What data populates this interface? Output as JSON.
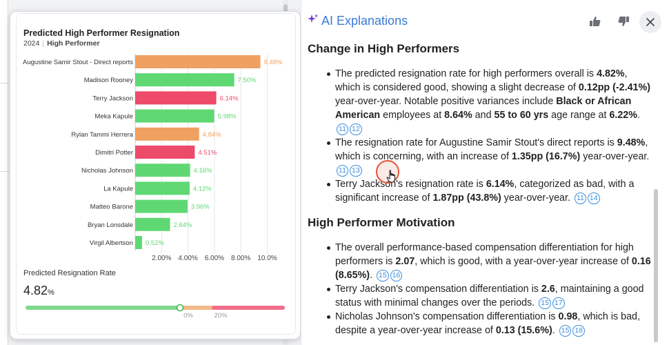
{
  "panel": {
    "title": "AI Explanations",
    "sections": [
      {
        "heading": "Change in High Performers",
        "bullets": [
          [
            {
              "t": "The predicted resignation rate for high performers overall is "
            },
            {
              "t": "4.82%",
              "b": true
            },
            {
              "t": ", which is considered good, showing a slight decrease of "
            },
            {
              "t": "0.12pp (-2.41%)",
              "b": true
            },
            {
              "t": " year-over-year. Notable positive variances include "
            },
            {
              "t": "Black or African American",
              "b": true
            },
            {
              "t": " employees at "
            },
            {
              "t": "8.64%",
              "b": true
            },
            {
              "t": " and "
            },
            {
              "t": "55 to 60 yrs",
              "b": true
            },
            {
              "t": " age range at "
            },
            {
              "t": "6.22%",
              "b": true
            },
            {
              "t": ". "
            },
            {
              "ref": "11"
            },
            {
              "ref": "12"
            }
          ],
          [
            {
              "t": "The resignation rate for Augustine Samir Stout's direct reports is "
            },
            {
              "t": "9.48%",
              "b": true
            },
            {
              "t": ", which is concerning, with an increase of "
            },
            {
              "t": "1.35pp (16.7%)",
              "b": true
            },
            {
              "t": " year-over-year. "
            },
            {
              "ref": "11"
            },
            {
              "ref": "13"
            }
          ],
          [
            {
              "t": "Terry Jackson's resignation rate is "
            },
            {
              "t": "6.14%",
              "b": true
            },
            {
              "t": ", categorized as bad, with a significant increase of "
            },
            {
              "t": "1.87pp (43.8%)",
              "b": true
            },
            {
              "t": " year-over-year. "
            },
            {
              "ref": "11"
            },
            {
              "ref": "14"
            }
          ]
        ]
      },
      {
        "heading": "High Performer Motivation",
        "bullets": [
          [
            {
              "t": "The overall performance-based compensation differentiation for high performers is "
            },
            {
              "t": "2.07",
              "b": true
            },
            {
              "t": ", which is good, with a year-over-year increase of "
            },
            {
              "t": "0.16 (8.65%)",
              "b": true
            },
            {
              "t": ". "
            },
            {
              "ref": "15"
            },
            {
              "ref": "16"
            }
          ],
          [
            {
              "t": "Terry Jackson's compensation differentiation is "
            },
            {
              "t": "2.6",
              "b": true
            },
            {
              "t": ", maintaining a good status with minimal changes over the periods. "
            },
            {
              "ref": "15"
            },
            {
              "ref": "17"
            }
          ],
          [
            {
              "t": "Nicholas Johnson's compensation differentiation is "
            },
            {
              "t": "0.98",
              "b": true
            },
            {
              "t": ", which is bad, despite a year-over-year increase of "
            },
            {
              "t": "0.13 (15.6%)",
              "b": true
            },
            {
              "t": ". "
            },
            {
              "ref": "15"
            },
            {
              "ref": "18"
            }
          ]
        ]
      }
    ],
    "icons": [
      "sparkle-icon",
      "thumbs-up-icon",
      "thumbs-down-icon",
      "close-icon"
    ]
  },
  "card": {
    "title": "Predicted High Performer Resignation",
    "year": "2024",
    "filter": "High Performer",
    "rate_label": "Predicted Resignation Rate",
    "rate_value": "4.82",
    "rate_unit": "%"
  },
  "gauge": {
    "value": 4.82,
    "ticks": [
      "0%",
      "20%"
    ],
    "colors": {
      "good": "#7fd88c",
      "warn": "#f2b98a",
      "bad": "#ef6f8a"
    }
  },
  "colors": {
    "good": "#5fd873",
    "warn": "#f0a060",
    "bad": "#ee4a6a",
    "accent": "#3a7bd5"
  },
  "chart_data": {
    "type": "bar",
    "orientation": "horizontal",
    "title": "Predicted High Performer Resignation",
    "categories": [
      "Augustine Samir Stout - Direct reports",
      "Madison Rooney",
      "Terry Jackson",
      "Meka Kapule",
      "Rylan Tammi Herrera",
      "Dimitri Potter",
      "Nicholas Johnson",
      "La Kapule",
      "Matteo Barone",
      "Bryan Lonsdale",
      "Virgil Albertson"
    ],
    "values": [
      9.48,
      7.5,
      6.14,
      5.98,
      4.84,
      4.51,
      4.16,
      4.12,
      3.96,
      2.64,
      0.52
    ],
    "value_labels": [
      "9.48%",
      "7.50%",
      "6.14%",
      "5.98%",
      "4.84%",
      "4.51%",
      "4.16%",
      "4.12%",
      "3.96%",
      "2.64%",
      "0.52%"
    ],
    "status": [
      "warn",
      "good",
      "bad",
      "good",
      "warn",
      "bad",
      "good",
      "good",
      "good",
      "good",
      "good"
    ],
    "xticks": [
      "2.00%",
      "4.00%",
      "6.00%",
      "8.00%",
      "10.0%"
    ],
    "xtick_values": [
      2,
      4,
      6,
      8,
      10
    ],
    "xlim": [
      0,
      10.5
    ],
    "grid": true
  }
}
